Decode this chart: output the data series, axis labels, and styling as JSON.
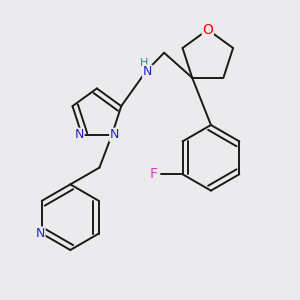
{
  "bg_color": "#ebebed",
  "atom_colors": {
    "O": "#ff0000",
    "N": "#2222cc",
    "F": "#cc44cc",
    "NH": "#228888",
    "H": "#228888",
    "C": "#000000"
  },
  "bond_color": "#1a1a1a",
  "bond_width": 1.4,
  "dbo": 0.018
}
